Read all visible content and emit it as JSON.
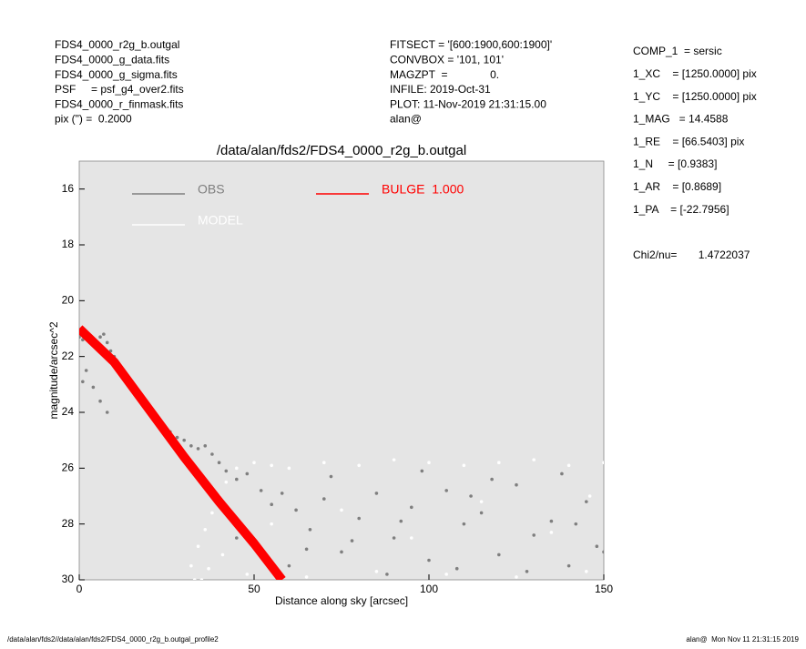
{
  "header_left": [
    "FDS4_0000_r2g_b.outgal",
    "FDS4_0000_g_data.fits",
    "FDS4_0000_g_sigma.fits",
    "PSF     = psf_g4_over2.fits",
    "FDS4_0000_r_finmask.fits",
    "pix (\") =  0.2000"
  ],
  "header_center": [
    "FITSECT = '[600:1900,600:1900]'",
    "CONVBOX = '101, 101'",
    "MAGZPT  =              0.",
    "INFILE: 2019-Oct-31",
    "PLOT: 11-Nov-2019 21:31:15.00",
    "alan@"
  ],
  "params": [
    "COMP_1  = sersic",
    "1_XC    = [1250.0000] pix",
    "1_YC    = [1250.0000] pix",
    "1_MAG   = 14.4588",
    "1_RE    = [66.5403] pix",
    "1_N     = [0.9383]",
    "1_AR    = [0.8689]",
    "1_PA    = [-22.7956]"
  ],
  "chi2": "Chi2/nu=       1.4722037",
  "footer_left": "/data/alan/fds2//data/alan/fds2/FDS4_0000_r2g_b.outgal_profile2",
  "footer_right": "alan@  Mon Nov 11 21:31:15 2019",
  "chart_data": {
    "type": "scatter",
    "title": "/data/alan/fds2/FDS4_0000_r2g_b.outgal",
    "xlabel": "Distance along sky [arcsec]",
    "ylabel": "magnitude/arcsec^2",
    "xlim": [
      0,
      150
    ],
    "xticks": [
      0,
      50,
      100,
      150
    ],
    "ylim": [
      30,
      15
    ],
    "yticks": [
      16,
      18,
      20,
      22,
      24,
      26,
      28,
      30
    ],
    "background": "#e5e5e5",
    "series": [
      {
        "name": "OBS",
        "color": "#7f7f7f",
        "type": "scatter",
        "x": [
          0,
          1,
          2,
          3,
          4,
          5,
          6,
          7,
          8,
          9,
          10,
          12,
          14,
          16,
          18,
          20,
          22,
          24,
          26,
          28,
          30,
          32,
          34,
          36,
          38,
          40,
          42,
          45,
          48,
          52,
          55,
          58,
          62,
          66,
          70,
          75,
          80,
          85,
          90,
          95,
          100,
          105,
          110,
          115,
          120,
          125,
          130,
          135,
          140,
          145,
          148,
          2,
          4,
          6,
          1,
          8,
          60,
          72,
          88,
          98,
          108,
          118,
          128,
          138,
          150,
          45,
          78,
          112,
          142,
          65,
          92
        ],
        "y": [
          21.3,
          21.4,
          21.3,
          21.5,
          21.4,
          21.6,
          21.3,
          21.2,
          21.5,
          21.8,
          22.0,
          22.7,
          23.0,
          23.3,
          23.6,
          23.9,
          24.2,
          24.5,
          24.7,
          24.9,
          25.0,
          25.2,
          25.3,
          25.2,
          25.5,
          25.8,
          26.1,
          26.4,
          26.2,
          26.8,
          27.3,
          26.9,
          27.5,
          28.2,
          27.1,
          29.0,
          27.8,
          26.9,
          28.5,
          27.4,
          29.3,
          26.8,
          28.0,
          27.6,
          29.1,
          26.6,
          28.4,
          27.9,
          29.5,
          27.2,
          28.8,
          22.5,
          23.1,
          23.6,
          22.9,
          24.0,
          29.5,
          26.3,
          29.8,
          26.1,
          29.6,
          26.4,
          29.7,
          26.2,
          29.0,
          28.5,
          28.6,
          27.0,
          28.0,
          28.9,
          27.9
        ]
      },
      {
        "name": "MODEL",
        "color": "#ffffff",
        "type": "scatter",
        "x": [
          32,
          34,
          35,
          36,
          38,
          40,
          42,
          45,
          50,
          55,
          60,
          70,
          80,
          90,
          100,
          110,
          120,
          130,
          140,
          150,
          33,
          37,
          41,
          48,
          65,
          85,
          105,
          125,
          145,
          146,
          75,
          95,
          115,
          135,
          55
        ],
        "y": [
          29.5,
          28.8,
          30,
          28.2,
          27.6,
          27.0,
          26.5,
          26.0,
          25.8,
          25.9,
          26.0,
          25.8,
          25.9,
          25.7,
          25.8,
          25.9,
          25.8,
          25.7,
          25.9,
          25.8,
          30,
          29.6,
          29.1,
          29.8,
          29.9,
          29.7,
          29.8,
          29.9,
          29.7,
          27.0,
          27.5,
          28.5,
          27.2,
          28.3,
          28.0
        ]
      },
      {
        "name": "BULGE  1.000",
        "color": "#ff0000",
        "type": "line",
        "x": [
          0,
          10,
          20,
          30,
          40,
          50,
          58
        ],
        "y": [
          21.0,
          22.2,
          23.9,
          25.6,
          27.2,
          28.7,
          30
        ]
      }
    ]
  }
}
